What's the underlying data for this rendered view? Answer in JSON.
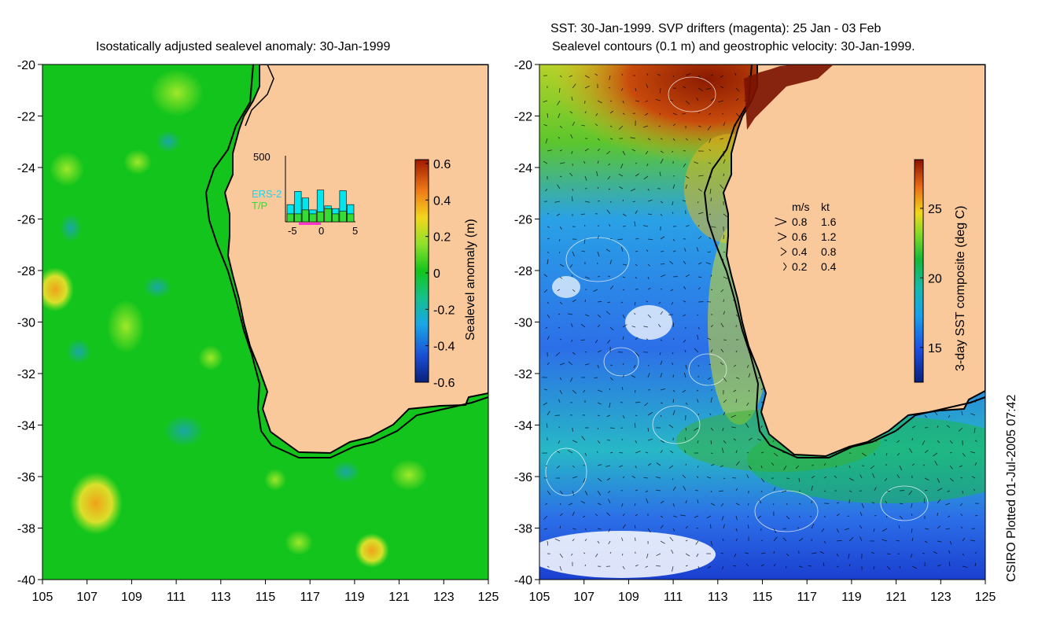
{
  "credit": "CSIRO Plotted 01-Jul-2005 07:42",
  "chart_data": [
    {
      "type": "heatmap",
      "title": "Isostatically adjusted sealevel anomaly: 30-Jan-1999",
      "x_ticks": [
        "105",
        "107",
        "109",
        "111",
        "113",
        "115",
        "117",
        "119",
        "121",
        "123",
        "125"
      ],
      "y_ticks": [
        "-20",
        "-22",
        "-24",
        "-26",
        "-28",
        "-30",
        "-32",
        "-34",
        "-36",
        "-38",
        "-40"
      ],
      "xlim": [
        105,
        125
      ],
      "ylim": [
        -40,
        -20
      ],
      "colorbar": {
        "label": "Sealevel anomaly (m)",
        "ticks": [
          "0.6",
          "0.4",
          "0.2",
          "0",
          "-0.2",
          "-0.4",
          "-0.6"
        ],
        "range": [
          -0.6,
          0.6
        ]
      },
      "inset_histogram": {
        "ymax_label": "500",
        "x_ticks": [
          "-5",
          "0",
          "5"
        ],
        "series": [
          {
            "name": "ERS-2",
            "color": "#00e6ee",
            "values": [
              130,
              230,
              180,
              90,
              240,
              120,
              100,
              235,
              130
            ]
          },
          {
            "name": "T/P",
            "color": "#33dd33",
            "values": [
              60,
              60,
              90,
              60,
              75,
              100,
              60,
              80,
              60
            ]
          }
        ]
      },
      "land_color": "#f9c89b",
      "colors": {
        "negative": "#0a2a8a",
        "zero": "#13c41c",
        "positive": "#a01a00"
      }
    },
    {
      "type": "heatmap",
      "title_line1": "SST: 30-Jan-1999. SVP drifters (magenta): 25 Jan - 03 Feb",
      "title_line2": "Sealevel contours (0.1 m) and geostrophic velocity: 30-Jan-1999.",
      "x_ticks": [
        "105",
        "107",
        "109",
        "111",
        "113",
        "115",
        "117",
        "119",
        "121",
        "123",
        "125"
      ],
      "y_ticks": [
        "-20",
        "-22",
        "-24",
        "-26",
        "-28",
        "-30",
        "-32",
        "-34",
        "-36",
        "-38",
        "-40"
      ],
      "xlim": [
        105,
        125
      ],
      "ylim": [
        -40,
        -20
      ],
      "colorbar": {
        "label": "3-day SST composite (deg C)",
        "ticks": [
          "25",
          "20",
          "15"
        ],
        "range": [
          12.5,
          28.5
        ]
      },
      "velocity_legend": {
        "headers": [
          "m/s",
          "kt"
        ],
        "rows": [
          {
            "ms": "0.8",
            "kt": "1.6"
          },
          {
            "ms": "0.6",
            "kt": "1.2"
          },
          {
            "ms": "0.4",
            "kt": "0.8"
          },
          {
            "ms": "0.2",
            "kt": "0.4"
          }
        ]
      }
    }
  ]
}
